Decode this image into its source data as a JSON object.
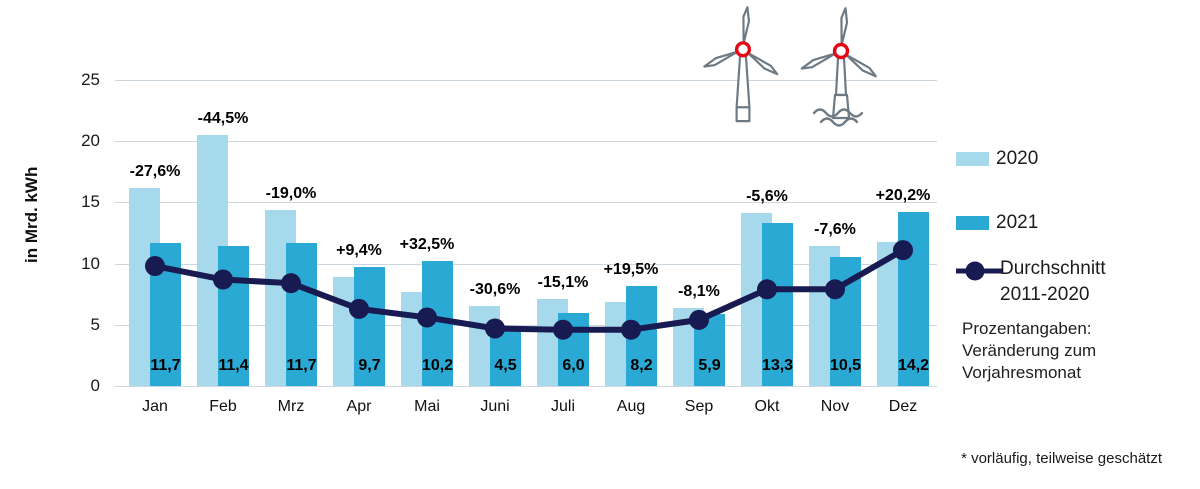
{
  "chart_data": {
    "type": "bar",
    "title": "",
    "ylabel": "in Mrd. kWh",
    "xlabel": "",
    "ylim": [
      0,
      25
    ],
    "ytick_step": 5,
    "grid": true,
    "legend_position": "right",
    "categories": [
      "Jan",
      "Feb",
      "Mrz",
      "Apr",
      "Mai",
      "Juni",
      "Juli",
      "Aug",
      "Sep",
      "Okt",
      "Nov",
      "Dez"
    ],
    "series": [
      {
        "name": "2020",
        "type": "bar",
        "color": "#a6d9eb",
        "values": [
          16.2,
          20.5,
          14.4,
          8.9,
          7.7,
          6.5,
          7.1,
          6.9,
          6.4,
          14.1,
          11.4,
          11.8
        ]
      },
      {
        "name": "2021",
        "type": "bar",
        "color": "#29a9d4",
        "values": [
          11.7,
          11.4,
          11.7,
          9.7,
          10.2,
          4.5,
          6.0,
          8.2,
          5.9,
          13.3,
          10.5,
          14.2
        ]
      },
      {
        "name": "Durchschnitt 2011-2020",
        "type": "line",
        "color": "#181a52",
        "values": [
          9.8,
          8.7,
          8.4,
          6.3,
          5.6,
          4.7,
          4.6,
          4.6,
          5.4,
          7.9,
          7.9,
          11.1
        ]
      }
    ],
    "value_labels_2021": [
      "11,7",
      "11,4",
      "11,7",
      "9,7",
      "10,2",
      "4,5",
      "6,0",
      "8,2",
      "5,9",
      "13,3",
      "10,5",
      "14,2"
    ],
    "pct_labels": [
      "-27,6%",
      "-44,5%",
      "-19,0%",
      "+9,4%",
      "+32,5%",
      "-30,6%",
      "-15,1%",
      "+19,5%",
      "-8,1%",
      "-5,6%",
      "-7,6%",
      "+20,2%"
    ]
  },
  "legend": {
    "item_2020": "2020",
    "item_2021": "2021",
    "avg_line1": "Durchschnitt",
    "avg_line2": "2011-2020",
    "note_line1": "Prozentangaben:",
    "note_line2": "Veränderung zum",
    "note_line3": "Vorjahresmonat"
  },
  "footnote": "* vorläufig, teilweise geschätzt",
  "icons": {
    "left": "onshore-wind-turbine",
    "right": "offshore-wind-turbine"
  },
  "colors": {
    "bar_2020": "#a6d9eb",
    "bar_2021": "#29a9d4",
    "avg_line": "#181a52",
    "gridline": "#ccd6de",
    "turbine_stroke": "#6d7a84",
    "turbine_hub": "#e30613"
  }
}
